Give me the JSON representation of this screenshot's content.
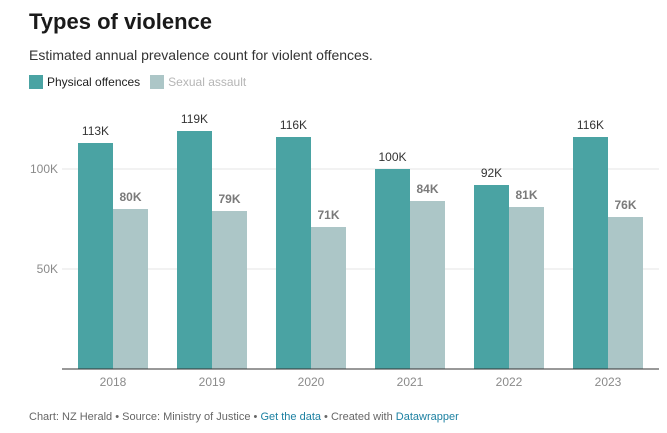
{
  "title": "Types of violence",
  "subtitle": "Estimated annual prevalence count for violent offences.",
  "legend": [
    {
      "label": "Physical offences",
      "color": "#4aa3a3"
    },
    {
      "label": "Sexual assault",
      "color": "#acc6c7"
    }
  ],
  "footer": {
    "chart_by": "Chart: NZ Herald",
    "sep1": " • ",
    "source": "Source: Ministry of Justice",
    "sep2": " • ",
    "get_data": "Get the data",
    "sep3": " • ",
    "created_with": "Created with ",
    "tool": "Datawrapper"
  },
  "chart_data": {
    "type": "bar",
    "categories": [
      "2018",
      "2019",
      "2020",
      "2021",
      "2022",
      "2023"
    ],
    "series": [
      {
        "name": "Physical offences",
        "color": "#4aa3a3",
        "values": [
          113000,
          119000,
          116000,
          100000,
          92000,
          116000
        ],
        "labels": [
          "113K",
          "119K",
          "116K",
          "100K",
          "92K",
          "116K"
        ]
      },
      {
        "name": "Sexual assault",
        "color": "#acc6c7",
        "values": [
          80000,
          79000,
          71000,
          84000,
          81000,
          76000
        ],
        "labels": [
          "80K",
          "79K",
          "71K",
          "84K",
          "81K",
          "76K"
        ]
      }
    ],
    "yticks": [
      {
        "value": 50000,
        "label": "50K"
      },
      {
        "value": 100000,
        "label": "100K"
      }
    ],
    "ylim": [
      0,
      125000
    ],
    "grid": true,
    "legend_position": "top-left"
  }
}
